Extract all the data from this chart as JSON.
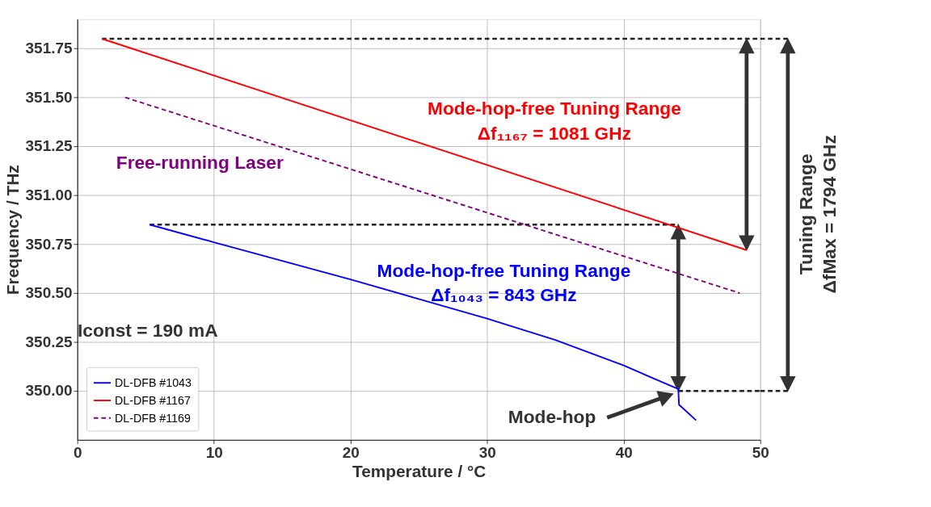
{
  "chart_data": {
    "type": "line",
    "xlabel": "Temperature / °C",
    "ylabel": "Frequency / THz",
    "xlim": [
      0,
      50
    ],
    "xticks": [
      0,
      10,
      20,
      30,
      40,
      50
    ],
    "ylim": [
      349.75,
      351.9
    ],
    "yticks": [
      {
        "value": 350,
        "label": "350.00"
      },
      {
        "value": 350.25,
        "label": "350.25"
      },
      {
        "value": 350.5,
        "label": "350.50"
      },
      {
        "value": 350.75,
        "label": "350.75"
      },
      {
        "value": 351,
        "label": "351.00"
      },
      {
        "value": 351.25,
        "label": "351.25"
      },
      {
        "value": 351.5,
        "label": "351.50"
      },
      {
        "value": 351.75,
        "label": "351.75"
      }
    ],
    "grid": true,
    "legend": "bottom left",
    "series": [
      {
        "name": "DL-DFB #1043",
        "color": "#0000ff",
        "line_style": "solid",
        "x": [
          5.3,
          10,
          15,
          20,
          25,
          30,
          35,
          40,
          42,
          44,
          44.05,
          45.3
        ],
        "values": [
          350.85,
          350.76,
          350.665,
          350.57,
          350.47,
          350.37,
          350.26,
          350.13,
          350.07,
          350.01,
          349.93,
          349.85
        ]
      },
      {
        "name": "DL-DFB #1167",
        "color": "#ff0000",
        "line_style": "solid",
        "x": [
          1.8,
          49
        ],
        "values": [
          351.8,
          350.72
        ]
      },
      {
        "name": "DL-DFB #1169",
        "color": "#800080",
        "line_style": "dashed",
        "x": [
          3.5,
          48.5
        ],
        "values": [
          351.5,
          350.5
        ]
      },
      {
        "color": "#222222",
        "line_style": "dashed",
        "x": [
          1.8,
          50
        ],
        "values": [
          351.8,
          351.8
        ]
      },
      {
        "color": "#222222",
        "line_style": "dashed",
        "x": [
          5.3,
          44
        ],
        "values": [
          350.85,
          350.85
        ]
      },
      {
        "color": "#222222",
        "line_style": "dashed",
        "x": [
          44,
          50
        ],
        "values": [
          350.0,
          350.0
        ]
      }
    ],
    "annotations": [
      "Mode-hop-free Tuning Range",
      "Δf₁₁₆₇ = 1081 GHz",
      "Free-running Laser",
      "Mode-hop-free Tuning Range",
      "Δf₁₀₄₃ = 843 GHz",
      "Iconst = 190 mA",
      "Mode-hop",
      "Tuning Range",
      "ΔfMax = 1794 GHz"
    ]
  }
}
